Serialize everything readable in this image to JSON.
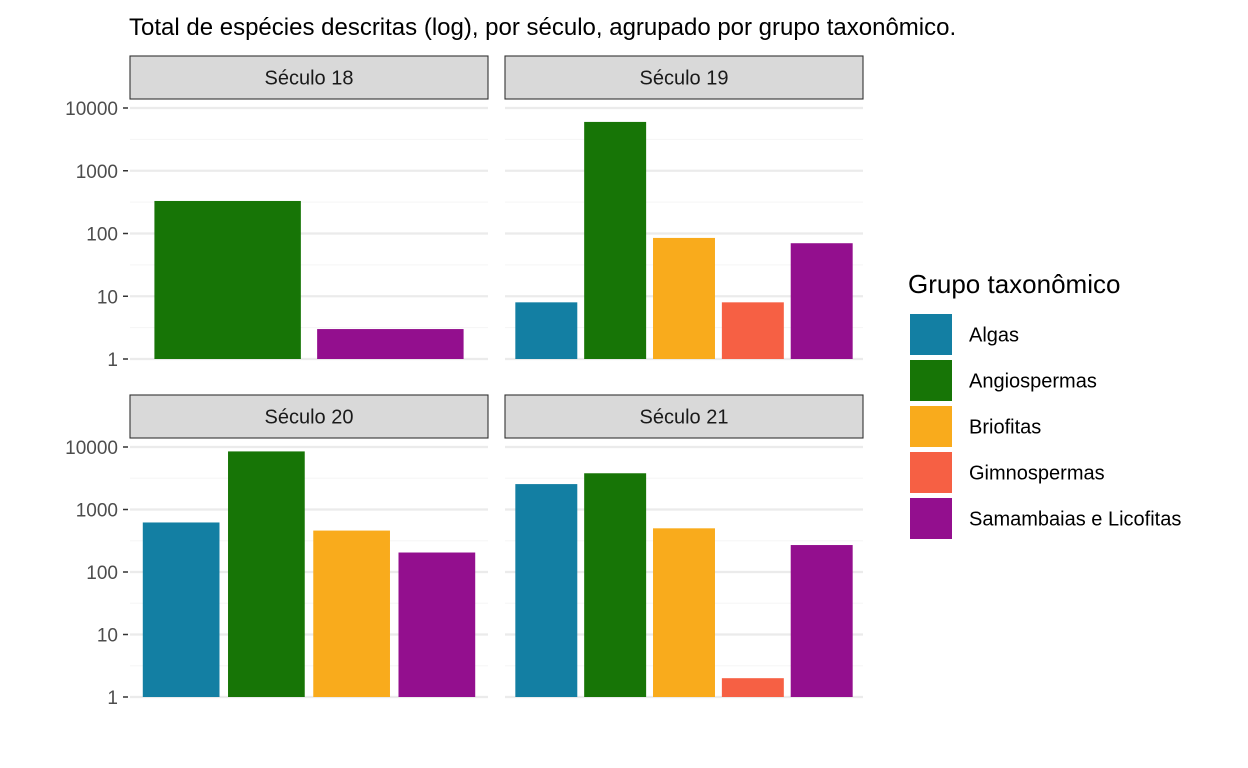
{
  "chart_data": {
    "type": "bar",
    "title": "Total de espécies descritas (log), por século, agrupado por grupo taxonômico.",
    "xlabel": "",
    "ylabel": "",
    "yscale": "log10",
    "ylim": [
      1,
      10000
    ],
    "y_ticks": [
      1,
      10,
      100,
      1000,
      10000
    ],
    "y_tick_labels": [
      "1",
      "10",
      "100",
      "1000",
      "10000"
    ],
    "grid": true,
    "legend": {
      "title": "Grupo taxonômico",
      "position": "right",
      "entries": [
        {
          "name": "Algas",
          "color": "#137FA3"
        },
        {
          "name": "Angiospermas",
          "color": "#177506"
        },
        {
          "name": "Briofitas",
          "color": "#F9AB1C"
        },
        {
          "name": "Gimnospermas",
          "color": "#F66044"
        },
        {
          "name": "Samambaias e Licofitas",
          "color": "#930F8E"
        }
      ]
    },
    "facets": [
      {
        "label": "Século 18",
        "bars": [
          {
            "group": "Angiospermas",
            "value": 330
          },
          {
            "group": "Samambaias e Licofitas",
            "value": 3
          }
        ]
      },
      {
        "label": "Século 19",
        "bars": [
          {
            "group": "Algas",
            "value": 8
          },
          {
            "group": "Angiospermas",
            "value": 6000
          },
          {
            "group": "Briofitas",
            "value": 85
          },
          {
            "group": "Gimnospermas",
            "value": 8
          },
          {
            "group": "Samambaias e Licofitas",
            "value": 70
          }
        ]
      },
      {
        "label": "Século 20",
        "bars": [
          {
            "group": "Algas",
            "value": 620
          },
          {
            "group": "Angiospermas",
            "value": 8500
          },
          {
            "group": "Briofitas",
            "value": 460
          },
          {
            "group": "Samambaias e Licofitas",
            "value": 205
          }
        ]
      },
      {
        "label": "Século 21",
        "bars": [
          {
            "group": "Algas",
            "value": 2550
          },
          {
            "group": "Angiospermas",
            "value": 3800
          },
          {
            "group": "Briofitas",
            "value": 500
          },
          {
            "group": "Gimnospermas",
            "value": 2
          },
          {
            "group": "Samambaias e Licofitas",
            "value": 270
          }
        ]
      }
    ]
  }
}
